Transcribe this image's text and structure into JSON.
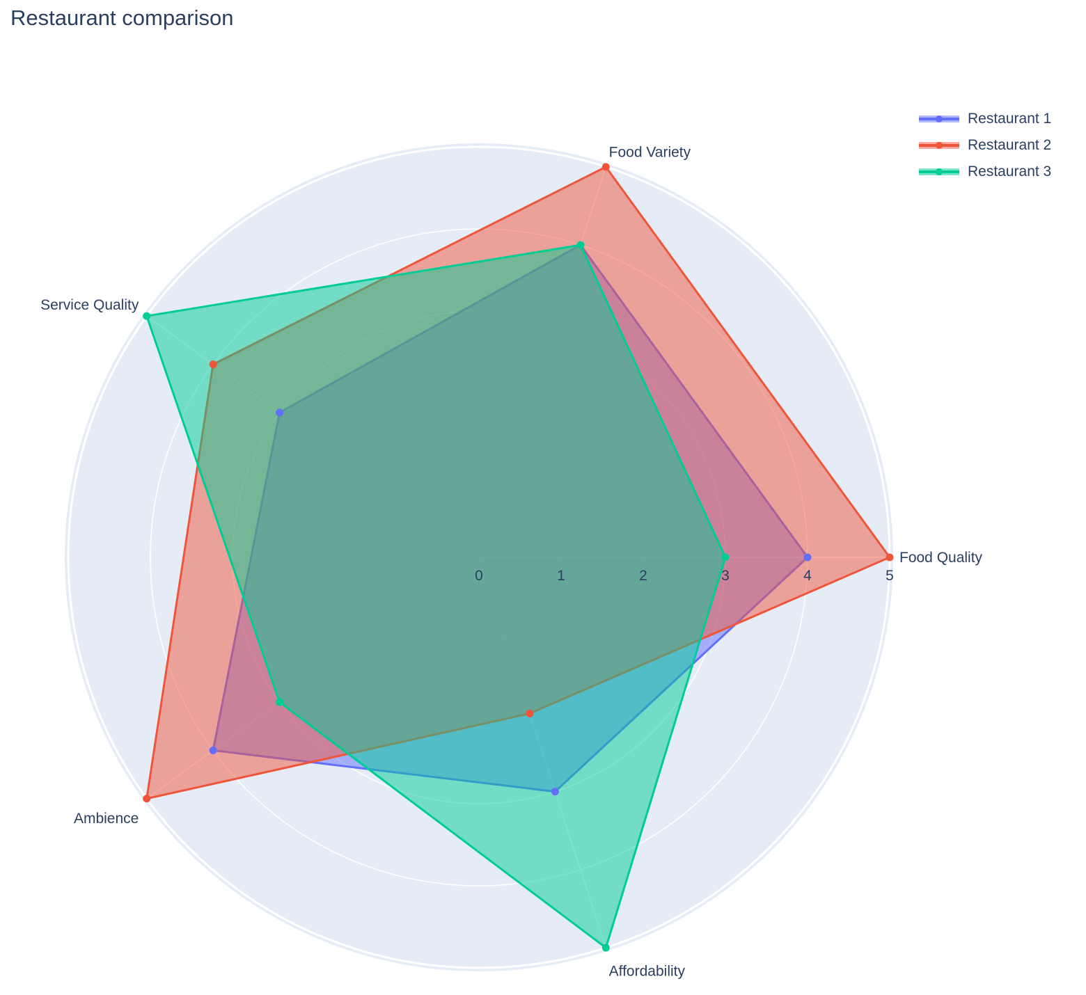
{
  "chart_data": {
    "type": "radar",
    "title": "Restaurant comparison",
    "categories": [
      "Food Quality",
      "Food Variety",
      "Service Quality",
      "Ambience",
      "Affordability"
    ],
    "radial_ticks": [
      "0",
      "1",
      "2",
      "3",
      "4",
      "5"
    ],
    "rlim": [
      0,
      5
    ],
    "grid": true,
    "legend_position": "top-right",
    "series": [
      {
        "name": "Restaurant 1",
        "color": "#636efa",
        "values": [
          4,
          4,
          3,
          4,
          3
        ]
      },
      {
        "name": "Restaurant 2",
        "color": "#ef553b",
        "values": [
          5,
          5,
          4,
          5,
          2
        ]
      },
      {
        "name": "Restaurant 3",
        "color": "#00cc96",
        "values": [
          3,
          4,
          5,
          3,
          5
        ]
      }
    ]
  }
}
